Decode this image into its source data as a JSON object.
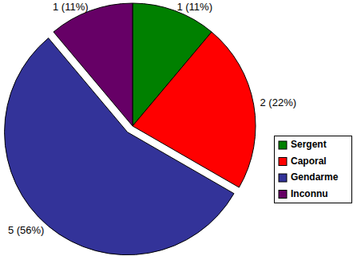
{
  "chart_data": {
    "type": "pie",
    "categories": [
      "Sergent",
      "Caporal",
      "Gendarme",
      "Inconnu"
    ],
    "values": [
      1,
      2,
      5,
      1
    ],
    "value_labels": [
      "1 (11%)",
      "2 (22%)",
      "5 (56%)",
      "1 (11%)"
    ],
    "colors": [
      "#008000",
      "#ff0000",
      "#333399",
      "#660066"
    ],
    "legend": "right",
    "data_labels": true
  }
}
